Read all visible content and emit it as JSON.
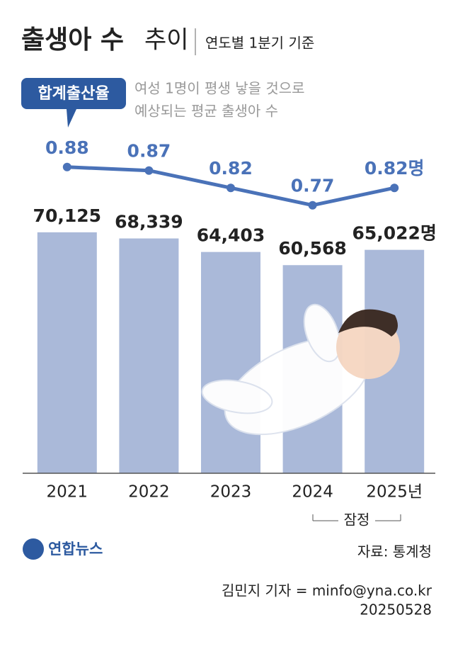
{
  "chart_data": {
    "type": "bar",
    "title": "출생아 수",
    "title_suffix": "추이",
    "subtitle": "연도별 1분기 기준",
    "categories": [
      "2021",
      "2022",
      "2023",
      "2024",
      "2025년"
    ],
    "ylim": [
      0,
      80000
    ],
    "y2lim": [
      0.5,
      1.0
    ],
    "series": [
      {
        "name": "출생아 수",
        "type": "bar",
        "color": "#aab9d9",
        "values": [
          70125,
          68339,
          64403,
          60568,
          65022
        ],
        "value_labels": [
          "70,125",
          "68,339",
          "64,403",
          "60,568",
          "65,022명"
        ]
      },
      {
        "name": "합계출산율",
        "type": "line",
        "axis": "y2",
        "color": "#4a72b8",
        "values": [
          0.88,
          0.87,
          0.82,
          0.77,
          0.82
        ],
        "value_labels": [
          "0.88",
          "0.87",
          "0.82",
          "0.77",
          "0.82명"
        ]
      }
    ],
    "description": [
      "여성 1명이 평생 낳을 것으로",
      "예상되는 평균 출생아 수"
    ],
    "provisional_note": "잠정",
    "logo": "연합뉴스",
    "source": "자료: 통계청",
    "credit": "김민지 기자 = minfo@yna.co.kr",
    "date": "20250528"
  }
}
